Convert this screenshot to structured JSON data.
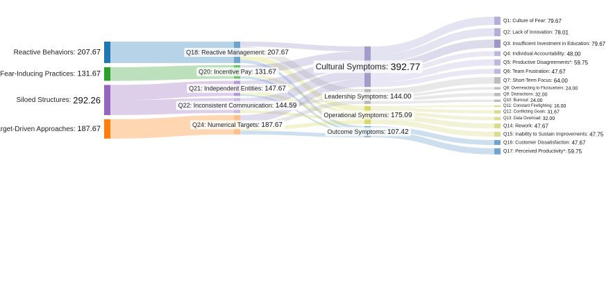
{
  "chart_data": {
    "type": "sankey",
    "title": "",
    "nodes": [
      {
        "id": "rb",
        "name": "Reactive Behaviors",
        "value": "207.67",
        "column": 0,
        "color": "#1f77b4"
      },
      {
        "id": "fip",
        "name": "Fear-Inducing Practices",
        "value": "131.67",
        "column": 0,
        "color": "#2ca02c"
      },
      {
        "id": "ss",
        "name": "Siloed Structures",
        "value": "292.26",
        "column": 0,
        "color": "#9467bd"
      },
      {
        "id": "tda",
        "name": "Target-Driven Approaches",
        "value": "187.67",
        "column": 0,
        "color": "#ff7f0e"
      },
      {
        "id": "q18",
        "name": "Q18: Reactive Management",
        "value": "207.67",
        "column": 1,
        "color": "#6fa4cf"
      },
      {
        "id": "q20",
        "name": "Q20: Incentive Pay",
        "value": "131.67",
        "column": 1,
        "color": "#6cc46c"
      },
      {
        "id": "q21",
        "name": "Q21: Independent Entities",
        "value": "147.67",
        "column": 1,
        "color": "#b79bd6"
      },
      {
        "id": "q22",
        "name": "Q22: Inconsistent Communication",
        "value": "144.59",
        "column": 1,
        "color": "#c9b6e2"
      },
      {
        "id": "q24",
        "name": "Q24: Numerical Targets",
        "value": "187.67",
        "column": 1,
        "color": "#ffbf86"
      },
      {
        "id": "cs",
        "name": "Cultural Symptoms",
        "value": "392.77",
        "column": 2,
        "color": "#a29ccb"
      },
      {
        "id": "ls",
        "name": "Leadership Symptoms",
        "value": "144.00",
        "column": 2,
        "color": "#b6b6b6"
      },
      {
        "id": "os",
        "name": "Operational Symptoms",
        "value": "175.09",
        "column": 2,
        "color": "#d9d96b"
      },
      {
        "id": "outs",
        "name": "Outcome Symptoms",
        "value": "107.42",
        "column": 2,
        "color": "#6fa4cf"
      },
      {
        "id": "q1",
        "name": "Q1: Culture of Fear",
        "value": "79.67",
        "column": 3,
        "color": "#b3afd6"
      },
      {
        "id": "q2",
        "name": "Q2: Lack of Innovation",
        "value": "78.01",
        "column": 3,
        "color": "#b3afd6"
      },
      {
        "id": "q3",
        "name": "Q3: Insufficient Investment in Education",
        "value": "79.67",
        "column": 3,
        "color": "#9c97c8"
      },
      {
        "id": "q4",
        "name": "Q4: Individual Accountability",
        "value": "48.00",
        "column": 3,
        "color": "#bdb9dc"
      },
      {
        "id": "q5",
        "name": "Q5: Productive Disagreements*",
        "value": "59.75",
        "column": 3,
        "color": "#bdb9dc"
      },
      {
        "id": "q6",
        "name": "Q6: Team Frustration",
        "value": "47.67",
        "column": 3,
        "color": "#bdb9dc"
      },
      {
        "id": "q7",
        "name": "Q7: Short-Term Focus",
        "value": "64.00",
        "column": 3,
        "color": "#bdbdbd"
      },
      {
        "id": "q8",
        "name": "Q8: Overreacting to Fluctuations",
        "value": "24.00",
        "column": 3,
        "color": "#bdbdbd"
      },
      {
        "id": "q9",
        "name": "Q9: Distractions",
        "value": "32.00",
        "column": 3,
        "color": "#bdbdbd"
      },
      {
        "id": "q10",
        "name": "Q10: Burnout",
        "value": "24.00",
        "column": 3,
        "color": "#bdbdbd"
      },
      {
        "id": "q11",
        "name": "Q11: Constant Firefighting",
        "value": "16.00",
        "column": 3,
        "color": "#dbdb8d"
      },
      {
        "id": "q12",
        "name": "Q12: Conflicting Goals",
        "value": "31.67",
        "column": 3,
        "color": "#dbdb8d"
      },
      {
        "id": "q13",
        "name": "Q13: Data Overload",
        "value": "32.00",
        "column": 3,
        "color": "#dbdb8d"
      },
      {
        "id": "q14",
        "name": "Q14: Rework",
        "value": "47.67",
        "column": 3,
        "color": "#dbdb8d"
      },
      {
        "id": "q15",
        "name": "Q15: Inability to Sustain Improvements",
        "value": "47.75",
        "column": 3,
        "color": "#dbdb8d"
      },
      {
        "id": "q16",
        "name": "Q16: Customer Dissatisfaction",
        "value": "47.67",
        "column": 3,
        "color": "#6fa4cf"
      },
      {
        "id": "q17",
        "name": "Q17: Perceived Productivity*",
        "value": "59.75",
        "column": 3,
        "color": "#6fa4cf"
      }
    ],
    "links": [
      {
        "source": "rb",
        "target": "q18",
        "value": 207.67
      },
      {
        "source": "fip",
        "target": "q20",
        "value": 131.67
      },
      {
        "source": "ss",
        "target": "q21",
        "value": 147.67
      },
      {
        "source": "ss",
        "target": "q22",
        "value": 144.59
      },
      {
        "source": "tda",
        "target": "q24",
        "value": 187.67
      },
      {
        "source": "q18",
        "target": "cs",
        "value": 48
      },
      {
        "source": "q18",
        "target": "ls",
        "value": 72
      },
      {
        "source": "q18",
        "target": "os",
        "value": 56
      },
      {
        "source": "q18",
        "target": "outs",
        "value": 31.67
      },
      {
        "source": "q20",
        "target": "cs",
        "value": 80
      },
      {
        "source": "q20",
        "target": "os",
        "value": 27.67
      },
      {
        "source": "q20",
        "target": "outs",
        "value": 24
      },
      {
        "source": "q21",
        "target": "cs",
        "value": 100
      },
      {
        "source": "q21",
        "target": "os",
        "value": 31.67
      },
      {
        "source": "q21",
        "target": "outs",
        "value": 16
      },
      {
        "source": "q22",
        "target": "cs",
        "value": 88
      },
      {
        "source": "q22",
        "target": "ls",
        "value": 32
      },
      {
        "source": "q22",
        "target": "os",
        "value": 24.59
      },
      {
        "source": "q24",
        "target": "cs",
        "value": 76.77
      },
      {
        "source": "q24",
        "target": "ls",
        "value": 40
      },
      {
        "source": "q24",
        "target": "os",
        "value": 35.16
      },
      {
        "source": "q24",
        "target": "outs",
        "value": 35.75
      },
      {
        "source": "cs",
        "target": "q1",
        "value": 79.67
      },
      {
        "source": "cs",
        "target": "q2",
        "value": 78.01
      },
      {
        "source": "cs",
        "target": "q3",
        "value": 79.67
      },
      {
        "source": "cs",
        "target": "q4",
        "value": 48
      },
      {
        "source": "cs",
        "target": "q5",
        "value": 59.75
      },
      {
        "source": "cs",
        "target": "q6",
        "value": 47.67
      },
      {
        "source": "ls",
        "target": "q7",
        "value": 64
      },
      {
        "source": "ls",
        "target": "q8",
        "value": 24
      },
      {
        "source": "ls",
        "target": "q9",
        "value": 32
      },
      {
        "source": "ls",
        "target": "q10",
        "value": 24
      },
      {
        "source": "os",
        "target": "q11",
        "value": 16
      },
      {
        "source": "os",
        "target": "q12",
        "value": 31.67
      },
      {
        "source": "os",
        "target": "q13",
        "value": 32
      },
      {
        "source": "os",
        "target": "q14",
        "value": 47.67
      },
      {
        "source": "os",
        "target": "q15",
        "value": 47.75
      },
      {
        "source": "outs",
        "target": "q16",
        "value": 47.67
      },
      {
        "source": "outs",
        "target": "q17",
        "value": 59.75
      }
    ]
  }
}
